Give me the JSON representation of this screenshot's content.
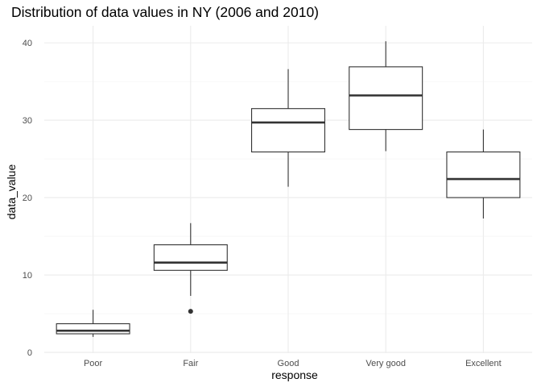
{
  "chart_data": {
    "type": "boxplot",
    "title": "Distribution of data values in NY (2006 and 2010)",
    "xlabel": "response",
    "ylabel": "data_value",
    "categories": [
      "Poor",
      "Fair",
      "Good",
      "Very good",
      "Excellent"
    ],
    "boxes": [
      {
        "category": "Poor",
        "whisker_low": 2.0,
        "q1": 2.4,
        "median": 2.8,
        "q3": 3.7,
        "whisker_high": 5.5,
        "outliers": []
      },
      {
        "category": "Fair",
        "whisker_low": 7.3,
        "q1": 10.6,
        "median": 11.6,
        "q3": 13.9,
        "whisker_high": 16.7,
        "outliers": [
          5.3
        ]
      },
      {
        "category": "Good",
        "whisker_low": 21.4,
        "q1": 25.9,
        "median": 29.7,
        "q3": 31.5,
        "whisker_high": 36.6,
        "outliers": []
      },
      {
        "category": "Very good",
        "whisker_low": 26.0,
        "q1": 28.8,
        "median": 33.2,
        "q3": 36.9,
        "whisker_high": 40.2,
        "outliers": []
      },
      {
        "category": "Excellent",
        "whisker_low": 17.3,
        "q1": 20.0,
        "median": 22.4,
        "q3": 25.9,
        "whisker_high": 28.8,
        "outliers": []
      }
    ],
    "yticks": [
      0,
      10,
      20,
      30,
      40
    ],
    "yminor": [
      5,
      15,
      25,
      35
    ],
    "ylim": [
      -0.1,
      42.2
    ],
    "grid": true,
    "legend": "none"
  }
}
